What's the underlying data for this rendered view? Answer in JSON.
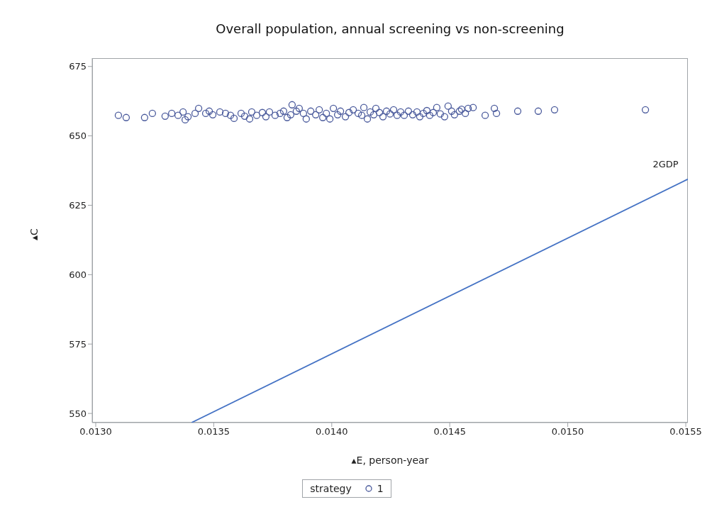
{
  "chart_data": {
    "type": "scatter",
    "title": "Overall population, annual screening vs non-screening",
    "xlabel": "▴E, person-year",
    "ylabel": "▴C",
    "legend_title": "strategy",
    "legend": "bottom",
    "grid": false,
    "xlim": [
      0.012985,
      0.015509
    ],
    "ylim": [
      546.7,
      678
    ],
    "xticks": [
      {
        "value": 0.013,
        "label": "0.0130"
      },
      {
        "value": 0.0135,
        "label": "0.0135"
      },
      {
        "value": 0.014,
        "label": "0.0140"
      },
      {
        "value": 0.0145,
        "label": "0.0145"
      },
      {
        "value": 0.015,
        "label": "0.0150"
      },
      {
        "value": 0.0155,
        "label": "0.0155"
      }
    ],
    "yticks": [
      550,
      575,
      600,
      625,
      650,
      675
    ],
    "series": [
      {
        "name": "1",
        "marker": "circle",
        "color": "#4a5a9c",
        "x": [
          0.013096,
          0.013129,
          0.013207,
          0.01324,
          0.013294,
          0.013322,
          0.013349,
          0.01337,
          0.013379,
          0.013391,
          0.013421,
          0.013436,
          0.013466,
          0.013481,
          0.013496,
          0.013526,
          0.01355,
          0.013571,
          0.013586,
          0.013616,
          0.013631,
          0.013652,
          0.013661,
          0.013682,
          0.013706,
          0.013721,
          0.013736,
          0.01376,
          0.013781,
          0.013796,
          0.013811,
          0.013826,
          0.013832,
          0.01385,
          0.013862,
          0.01388,
          0.013892,
          0.013911,
          0.013932,
          0.013947,
          0.013962,
          0.013977,
          0.013992,
          0.014007,
          0.014025,
          0.014037,
          0.014058,
          0.014073,
          0.014091,
          0.014112,
          0.014127,
          0.014136,
          0.014151,
          0.014163,
          0.014178,
          0.014187,
          0.014202,
          0.014217,
          0.014232,
          0.014247,
          0.014262,
          0.014277,
          0.014292,
          0.014307,
          0.014325,
          0.014343,
          0.014361,
          0.014373,
          0.014388,
          0.014403,
          0.014415,
          0.01443,
          0.014445,
          0.01446,
          0.014478,
          0.014493,
          0.014508,
          0.01452,
          0.014541,
          0.01455,
          0.014566,
          0.014578,
          0.014599,
          0.01465,
          0.014689,
          0.014698,
          0.014788,
          0.014875,
          0.014944,
          0.015329
        ],
        "values": [
          657.4,
          656.6,
          656.6,
          658.1,
          657.1,
          658.1,
          657.4,
          658.6,
          655.8,
          656.9,
          658.1,
          659.9,
          658.1,
          658.9,
          657.6,
          658.6,
          658.1,
          657.4,
          656.3,
          658.1,
          657.1,
          656.1,
          658.6,
          657.4,
          658.4,
          656.9,
          658.6,
          657.4,
          658.1,
          658.9,
          656.6,
          657.6,
          661.2,
          658.9,
          659.9,
          658.1,
          656.1,
          658.9,
          657.6,
          659.4,
          656.6,
          658.1,
          656.1,
          659.9,
          657.6,
          658.9,
          656.9,
          658.4,
          659.4,
          658.1,
          657.4,
          660.2,
          656.1,
          658.6,
          657.6,
          659.9,
          658.4,
          656.9,
          658.9,
          657.9,
          659.4,
          657.4,
          658.6,
          657.4,
          658.9,
          657.6,
          658.6,
          656.9,
          658.1,
          659.1,
          657.4,
          658.4,
          660.2,
          657.9,
          656.9,
          660.7,
          658.9,
          657.6,
          658.9,
          659.6,
          658.1,
          659.9,
          660.2,
          657.4,
          659.9,
          658.1,
          658.9,
          658.9,
          659.4,
          659.4
        ]
      },
      {
        "name": "2GDP",
        "type": "line",
        "marker": "none",
        "color": "#4472c4",
        "x": [
          0.013406,
          0.015509
        ],
        "values": [
          546.7,
          634.4
        ]
      }
    ]
  }
}
